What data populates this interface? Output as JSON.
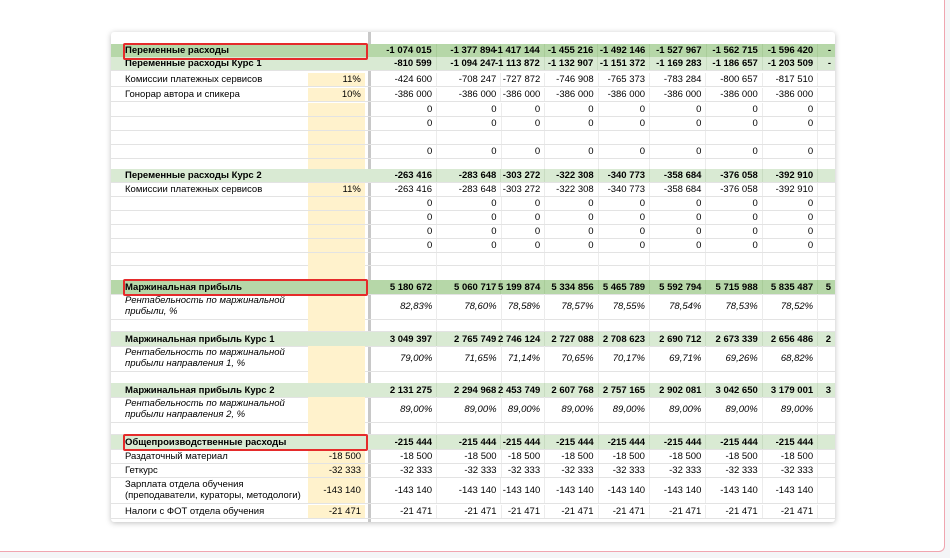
{
  "columns_count": 9,
  "rows": [
    {
      "style": "darkgreen",
      "label": "Переменные расходы",
      "pct": "",
      "values": [
        "-1 074 015",
        "-1 377 894",
        "-1 417 144",
        "-1 455 216",
        "-1 492 146",
        "-1 527 967",
        "-1 562 715",
        "-1 596 420",
        "-"
      ],
      "top": 44,
      "h": 13
    },
    {
      "style": "green",
      "label": "Переменные расходы Курс 1",
      "pct": "",
      "values": [
        "-810 599",
        "-1 094 247",
        "-1 113 872",
        "-1 132 907",
        "-1 151 372",
        "-1 169 283",
        "-1 186 657",
        "-1 203 509",
        "-"
      ],
      "top": 57,
      "h": 13
    },
    {
      "style": "",
      "label": "Комиссии платежных сервисов",
      "pct": "11%",
      "values": [
        "-424 600",
        "-708 247",
        "-727 872",
        "-746 908",
        "-765 373",
        "-783 284",
        "-800 657",
        "-817 510",
        ""
      ],
      "top": 73,
      "h": 13
    },
    {
      "style": "",
      "label": "Гонорар автора и спикера",
      "pct": "10%",
      "values": [
        "-386 000",
        "-386 000",
        "-386 000",
        "-386 000",
        "-386 000",
        "-386 000",
        "-386 000",
        "-386 000",
        ""
      ],
      "top": 88,
      "h": 13
    },
    {
      "style": "",
      "label": "",
      "pct": "",
      "values": [
        "0",
        "0",
        "0",
        "0",
        "0",
        "0",
        "0",
        "0",
        ""
      ],
      "top": 103,
      "h": 13
    },
    {
      "style": "",
      "label": "",
      "pct": "",
      "values": [
        "0",
        "0",
        "0",
        "0",
        "0",
        "0",
        "0",
        "0",
        ""
      ],
      "top": 117,
      "h": 13
    },
    {
      "style": "",
      "label": "",
      "pct": "",
      "values": [
        "",
        "",
        "",
        "",
        "",
        "",
        "",
        "",
        ""
      ],
      "top": 131,
      "h": 13
    },
    {
      "style": "",
      "label": "",
      "pct": "",
      "values": [
        "0",
        "0",
        "0",
        "0",
        "0",
        "0",
        "0",
        "0",
        ""
      ],
      "top": 145,
      "h": 13
    },
    {
      "style": "",
      "label": "",
      "pct": "",
      "values": [
        "",
        "",
        "",
        "",
        "",
        "",
        "",
        "",
        ""
      ],
      "top": 159,
      "h": 10
    },
    {
      "style": "green",
      "label": "Переменные расходы Курс 2",
      "pct": "",
      "values": [
        "-263 416",
        "-283 648",
        "-303 272",
        "-322 308",
        "-340 773",
        "-358 684",
        "-376 058",
        "-392 910",
        ""
      ],
      "top": 169,
      "h": 13
    },
    {
      "style": "",
      "label": "Комиссии платежных сервисов",
      "pct": "11%",
      "values": [
        "-263 416",
        "-283 648",
        "-303 272",
        "-322 308",
        "-340 773",
        "-358 684",
        "-376 058",
        "-392 910",
        ""
      ],
      "top": 183,
      "h": 13
    },
    {
      "style": "",
      "label": "",
      "pct": "",
      "values": [
        "0",
        "0",
        "0",
        "0",
        "0",
        "0",
        "0",
        "0",
        ""
      ],
      "top": 197,
      "h": 13
    },
    {
      "style": "",
      "label": "",
      "pct": "",
      "values": [
        "0",
        "0",
        "0",
        "0",
        "0",
        "0",
        "0",
        "0",
        ""
      ],
      "top": 211,
      "h": 13
    },
    {
      "style": "",
      "label": "",
      "pct": "",
      "values": [
        "0",
        "0",
        "0",
        "0",
        "0",
        "0",
        "0",
        "0",
        ""
      ],
      "top": 225,
      "h": 13
    },
    {
      "style": "",
      "label": "",
      "pct": "",
      "values": [
        "0",
        "0",
        "0",
        "0",
        "0",
        "0",
        "0",
        "0",
        ""
      ],
      "top": 239,
      "h": 13
    },
    {
      "style": "",
      "label": "",
      "pct": "",
      "values": [
        "",
        "",
        "",
        "",
        "",
        "",
        "",
        "",
        ""
      ],
      "top": 253,
      "h": 12
    },
    {
      "style": "",
      "label": "",
      "pct": "",
      "values": [
        "",
        "",
        "",
        "",
        "",
        "",
        "",
        "",
        ""
      ],
      "top": 265,
      "h": 15
    },
    {
      "style": "darkgreen",
      "label": "Маржинальная прибыль",
      "pct": "",
      "values": [
        "5 180 672",
        "5 060 717",
        "5 199 874",
        "5 334 856",
        "5 465 789",
        "5 592 794",
        "5 715 988",
        "5 835 487",
        "5"
      ],
      "top": 280,
      "h": 14
    },
    {
      "style": "italic wrap",
      "label": "Рентабельность по маржинальной прибыли, %",
      "pct": "",
      "values": [
        "82,83%",
        "78,60%",
        "78,58%",
        "78,57%",
        "78,55%",
        "78,54%",
        "78,53%",
        "78,52%",
        ""
      ],
      "top": 294,
      "h": 25
    },
    {
      "style": "",
      "label": "",
      "pct": "",
      "values": [
        "",
        "",
        "",
        "",
        "",
        "",
        "",
        "",
        ""
      ],
      "top": 319,
      "h": 12
    },
    {
      "style": "green",
      "label": "Маржинальная прибыль Курс 1",
      "pct": "",
      "values": [
        "3 049 397",
        "2 765 749",
        "2 746 124",
        "2 727 088",
        "2 708 623",
        "2 690 712",
        "2 673 339",
        "2 656 486",
        "2"
      ],
      "top": 332,
      "h": 14
    },
    {
      "style": "italic wrap",
      "label": "Рентабельность по маржинальной прибыли направления 1, %",
      "pct": "",
      "values": [
        "79,00%",
        "71,65%",
        "71,14%",
        "70,65%",
        "70,17%",
        "69,71%",
        "69,26%",
        "68,82%",
        ""
      ],
      "top": 346,
      "h": 25
    },
    {
      "style": "",
      "label": "",
      "pct": "",
      "values": [
        "",
        "",
        "",
        "",
        "",
        "",
        "",
        "",
        ""
      ],
      "top": 371,
      "h": 12
    },
    {
      "style": "green",
      "label": "Маржинальная прибыль Курс 2",
      "pct": "",
      "values": [
        "2 131 275",
        "2 294 968",
        "2 453 749",
        "2 607 768",
        "2 757 165",
        "2 902 081",
        "3 042 650",
        "3 179 001",
        "3"
      ],
      "top": 383,
      "h": 14
    },
    {
      "style": "italic wrap",
      "label": "Рентабельность по маржинальной прибыли направления 2, %",
      "pct": "",
      "values": [
        "89,00%",
        "89,00%",
        "89,00%",
        "89,00%",
        "89,00%",
        "89,00%",
        "89,00%",
        "89,00%",
        ""
      ],
      "top": 397,
      "h": 25
    },
    {
      "style": "",
      "label": "",
      "pct": "",
      "values": [
        "",
        "",
        "",
        "",
        "",
        "",
        "",
        "",
        ""
      ],
      "top": 422,
      "h": 12
    },
    {
      "style": "green",
      "label": "Общепроизводственные расходы",
      "pct": "",
      "values": [
        "-215 444",
        "-215 444",
        "-215 444",
        "-215 444",
        "-215 444",
        "-215 444",
        "-215 444",
        "-215 444",
        ""
      ],
      "top": 435,
      "h": 14
    },
    {
      "style": "",
      "label": "Раздаточный материал",
      "pct": "-18 500",
      "values": [
        "-18 500",
        "-18 500",
        "-18 500",
        "-18 500",
        "-18 500",
        "-18 500",
        "-18 500",
        "-18 500",
        ""
      ],
      "top": 450,
      "h": 13
    },
    {
      "style": "",
      "label": "Геткурс",
      "pct": "-32 333",
      "values": [
        "-32 333",
        "-32 333",
        "-32 333",
        "-32 333",
        "-32 333",
        "-32 333",
        "-32 333",
        "-32 333",
        ""
      ],
      "top": 464,
      "h": 13
    },
    {
      "style": "wrap",
      "label": "Зарплата отдела обучения (преподаватели, кураторы, методологи)",
      "pct": "-143 140",
      "values": [
        "-143 140",
        "-143 140",
        "-143 140",
        "-143 140",
        "-143 140",
        "-143 140",
        "-143 140",
        "-143 140",
        ""
      ],
      "top": 478,
      "h": 25
    },
    {
      "style": "",
      "label": "Налоги с ФОТ отдела обучения",
      "pct": "-21 471",
      "values": [
        "-21 471",
        "-21 471",
        "-21 471",
        "-21 471",
        "-21 471",
        "-21 471",
        "-21 471",
        "-21 471",
        ""
      ],
      "top": 505,
      "h": 13
    }
  ],
  "highlights": [
    {
      "label": "Переменные расходы"
    },
    {
      "label": "Маржинальная прибыль"
    },
    {
      "label": "Общепроизводственные расходы"
    }
  ],
  "colors": {
    "header_green": "#b6d7a8",
    "section_green": "#d9ead3",
    "input_yellow": "#fff2cc",
    "highlight_red": "#e52b2b"
  }
}
